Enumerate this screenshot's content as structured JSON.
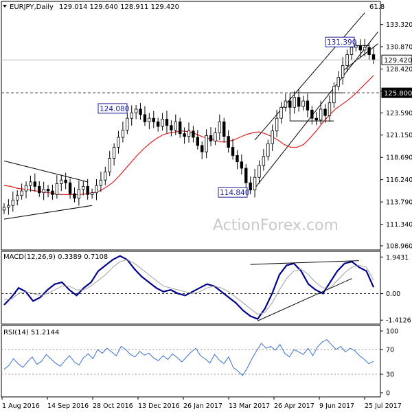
{
  "chart_data": {
    "type": "candlestick",
    "watermark": "ActionForex.com",
    "main": {
      "title": "EURJPY,Daily",
      "ohlc_text": "129.014 129.640 128.911 129.420",
      "corner_value": "61.8",
      "y_ticks": [
        "133.320",
        "130.870",
        "128.420",
        "125.970",
        "123.590",
        "121.150",
        "118.690",
        "116.240",
        "113.790",
        "111.340",
        "108.960"
      ],
      "ylim": [
        108.96,
        134.5
      ],
      "current_price": "129.420",
      "level_line": "125.800",
      "annotations": [
        "131.390",
        "124.080",
        "114.840"
      ],
      "close_series": [
        113.2,
        113.4,
        114.0,
        114.5,
        115.0,
        115.6,
        116.0,
        115.5,
        114.8,
        115.2,
        115.0,
        114.6,
        115.8,
        116.2,
        115.9,
        114.7,
        114.2,
        115.2,
        115.5,
        114.6,
        114.8,
        115.6,
        116.2,
        117.1,
        118.6,
        119.8,
        120.9,
        121.7,
        123.0,
        123.6,
        124.0,
        123.4,
        122.6,
        123.0,
        122.6,
        122.1,
        122.9,
        122.2,
        121.7,
        122.6,
        121.3,
        121.0,
        121.6,
        120.9,
        120.0,
        119.3,
        121.1,
        120.5,
        121.4,
        122.6,
        121.0,
        119.8,
        118.9,
        118.2,
        117.5,
        115.9,
        115.1,
        116.5,
        117.8,
        118.8,
        120.2,
        121.6,
        123.0,
        124.2,
        124.9,
        124.2,
        125.3,
        124.3,
        124.9,
        123.9,
        123.0,
        122.8,
        124.0,
        123.3,
        124.7,
        126.5,
        127.5,
        128.8,
        130.0,
        130.8,
        131.0,
        130.5,
        130.8,
        130.0,
        129.42
      ],
      "ma_series": [
        115.6,
        115.5,
        115.3,
        115.2,
        115.1,
        115.0,
        114.9,
        114.8,
        114.7,
        114.6,
        114.6,
        114.6,
        114.6,
        114.7,
        114.8,
        115.0,
        115.4,
        115.9,
        116.6,
        117.4,
        118.2,
        119.0,
        119.7,
        120.3,
        120.8,
        121.2,
        121.4,
        121.5,
        121.6,
        121.5,
        121.3,
        121.0,
        120.8,
        120.6,
        120.4,
        120.4,
        120.6,
        120.9,
        121.2,
        121.4,
        121.5,
        121.3,
        121.0,
        120.6,
        120.1,
        119.8,
        119.8,
        120.1,
        120.8,
        121.6,
        122.5,
        123.3,
        124.0,
        124.5,
        125.0,
        125.6,
        126.3,
        127.0,
        127.7
      ],
      "ma_start_index": 0
    },
    "macd": {
      "title": "MACD(12,26,9) 0.3389 0.7108",
      "y_ticks": [
        "1.9431",
        "0.00",
        "-1.4126"
      ],
      "ylim": [
        -1.55,
        2.1
      ],
      "series": [
        {
          "name": "macd",
          "values": [
            -0.6,
            -0.2,
            0.3,
            0.1,
            -0.4,
            -0.2,
            0.2,
            0.5,
            0.6,
            0.2,
            -0.1,
            0.3,
            0.6,
            1.2,
            1.5,
            1.8,
            2.0,
            1.8,
            1.3,
            0.9,
            0.6,
            0.3,
            0.1,
            0.2,
            0.0,
            -0.1,
            0.1,
            0.3,
            0.5,
            0.4,
            0.1,
            -0.2,
            -0.5,
            -0.9,
            -1.2,
            -1.35,
            -0.8,
            0.0,
            1.0,
            1.5,
            1.6,
            1.2,
            0.5,
            0.2,
            0.0,
            0.6,
            1.2,
            1.6,
            1.7,
            1.4,
            1.2,
            0.34
          ]
        },
        {
          "name": "signal",
          "values": [
            -0.3,
            -0.3,
            0.0,
            0.1,
            0.0,
            -0.1,
            0.0,
            0.2,
            0.4,
            0.4,
            0.2,
            0.2,
            0.4,
            0.7,
            1.0,
            1.4,
            1.7,
            1.8,
            1.6,
            1.3,
            1.0,
            0.7,
            0.4,
            0.3,
            0.2,
            0.1,
            0.0,
            0.1,
            0.3,
            0.4,
            0.3,
            0.1,
            -0.2,
            -0.5,
            -0.8,
            -1.1,
            -1.0,
            -0.5,
            0.2,
            0.8,
            1.2,
            1.3,
            1.0,
            0.6,
            0.3,
            0.3,
            0.7,
            1.1,
            1.4,
            1.5,
            1.4,
            0.71
          ]
        }
      ]
    },
    "rsi": {
      "title": "RSI(14) 51.2144",
      "y_ticks": [
        "100",
        "70",
        "30",
        "0"
      ],
      "ylim": [
        0,
        100
      ],
      "values": [
        38,
        44,
        55,
        47,
        41,
        50,
        58,
        46,
        51,
        62,
        55,
        48,
        43,
        52,
        60,
        50,
        45,
        57,
        63,
        55,
        70,
        64,
        72,
        66,
        60,
        75,
        70,
        62,
        58,
        67,
        61,
        64,
        56,
        52,
        60,
        54,
        63,
        57,
        50,
        58,
        66,
        72,
        60,
        55,
        48,
        62,
        53,
        47,
        58,
        41,
        35,
        28,
        40,
        55,
        68,
        80,
        72,
        75,
        69,
        78,
        64,
        58,
        70,
        66,
        62,
        72,
        60,
        74,
        82,
        86,
        78,
        70,
        75,
        66,
        72,
        68,
        60,
        54,
        47,
        51
      ]
    },
    "x_labels": [
      "1 Aug 2016",
      "14 Sep 2016",
      "28 Oct 2016",
      "13 Dec 2016",
      "26 Jan 2017",
      "13 Mar 2017",
      "26 Apr 2017",
      "9 Jun 2017",
      "25 Jul 2017"
    ],
    "colors": {
      "candle": "#000000",
      "ma": "#e02020",
      "macd": "#00008b",
      "signal": "#a0a0a0",
      "rsi": "#3a6fd0",
      "annotation_box": "#2020a0",
      "level_dash": "#333333"
    }
  }
}
